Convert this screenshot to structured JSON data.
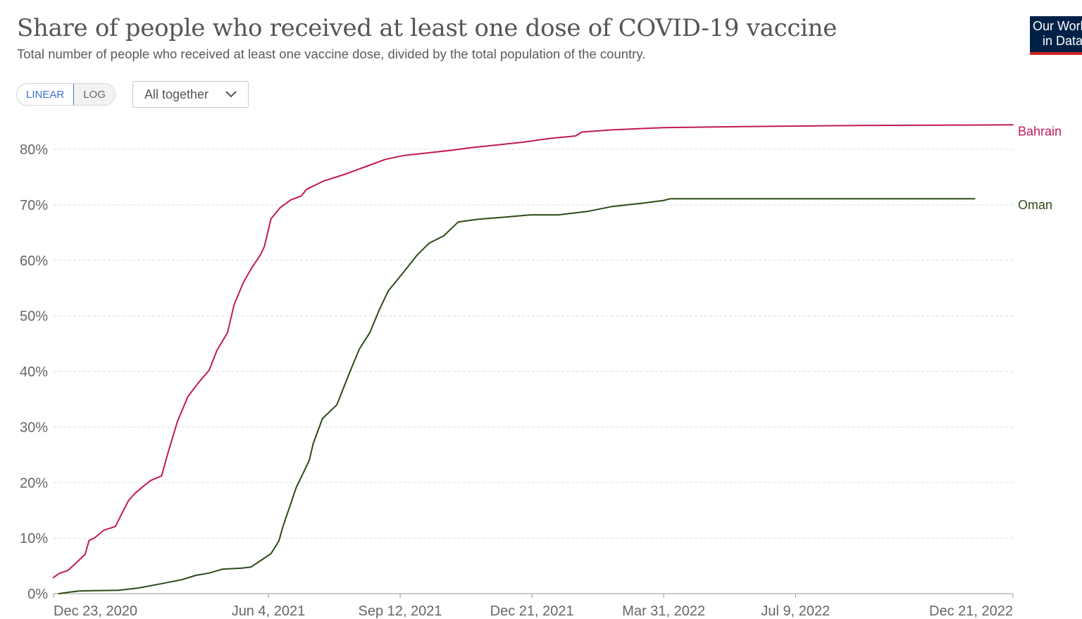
{
  "header": {
    "title": "Share of people who received at least one dose of COVID-19 vaccine",
    "subtitle": "Total number of people who received at least one vaccine dose, divided by the total population of the country."
  },
  "logo": {
    "line1": "Our World",
    "line2": "in Data"
  },
  "controls": {
    "scale_options": [
      "LINEAR",
      "LOG"
    ],
    "active_scale": "LINEAR",
    "dropdown_value": "All together",
    "dropdown_icon": "chevron-down-icon"
  },
  "chart_data": {
    "type": "line",
    "title": "Share of people who received at least one dose of COVID-19 vaccine",
    "subtitle": "Total number of people who received at least one vaccine dose, divided by the total population of the country.",
    "xlabel": "",
    "ylabel": "",
    "x_start": "2020-12-23",
    "x_end": "2022-12-21",
    "x_ticks": [
      {
        "date": "2020-12-23",
        "label": "Dec 23, 2020"
      },
      {
        "date": "2021-06-04",
        "label": "Jun 4, 2021"
      },
      {
        "date": "2021-09-12",
        "label": "Sep 12, 2021"
      },
      {
        "date": "2021-12-21",
        "label": "Dec 21, 2021"
      },
      {
        "date": "2022-03-31",
        "label": "Mar 31, 2022"
      },
      {
        "date": "2022-07-09",
        "label": "Jul 9, 2022"
      },
      {
        "date": "2022-12-21",
        "label": "Dec 21, 2022"
      }
    ],
    "ylim": [
      0,
      80
    ],
    "y_ticks": [
      {
        "value": 0,
        "label": "0%"
      },
      {
        "value": 10,
        "label": "10%"
      },
      {
        "value": 20,
        "label": "20%"
      },
      {
        "value": 30,
        "label": "30%"
      },
      {
        "value": 40,
        "label": "40%"
      },
      {
        "value": 50,
        "label": "50%"
      },
      {
        "value": 60,
        "label": "60%"
      },
      {
        "value": 70,
        "label": "70%"
      },
      {
        "value": 80,
        "label": "80%"
      }
    ],
    "grid": true,
    "series": [
      {
        "name": "Bahrain",
        "color": "#c2185b",
        "points": [
          [
            "2020-12-23",
            2.9
          ],
          [
            "2020-12-27",
            3.6
          ],
          [
            "2021-01-03",
            4.2
          ],
          [
            "2021-01-09",
            5.5
          ],
          [
            "2021-01-16",
            7.1
          ],
          [
            "2021-01-19",
            9.6
          ],
          [
            "2021-01-23",
            10.0
          ],
          [
            "2021-01-30",
            11.4
          ],
          [
            "2021-02-08",
            12.1
          ],
          [
            "2021-02-13",
            14.5
          ],
          [
            "2021-02-18",
            16.8
          ],
          [
            "2021-02-23",
            18.1
          ],
          [
            "2021-03-02",
            19.5
          ],
          [
            "2021-03-07",
            20.4
          ],
          [
            "2021-03-15",
            21.2
          ],
          [
            "2021-03-20",
            25.5
          ],
          [
            "2021-03-27",
            31.0
          ],
          [
            "2021-04-04",
            35.5
          ],
          [
            "2021-04-12",
            38.0
          ],
          [
            "2021-04-20",
            40.2
          ],
          [
            "2021-04-26",
            43.8
          ],
          [
            "2021-05-04",
            47.0
          ],
          [
            "2021-05-09",
            52.0
          ],
          [
            "2021-05-16",
            56.0
          ],
          [
            "2021-05-22",
            58.5
          ],
          [
            "2021-05-29",
            61.0
          ],
          [
            "2021-06-01",
            62.5
          ],
          [
            "2021-06-06",
            67.5
          ],
          [
            "2021-06-13",
            69.5
          ],
          [
            "2021-06-21",
            70.9
          ],
          [
            "2021-06-29",
            71.6
          ],
          [
            "2021-07-03",
            72.8
          ],
          [
            "2021-07-16",
            74.3
          ],
          [
            "2021-08-01",
            75.5
          ],
          [
            "2021-08-17",
            76.9
          ],
          [
            "2021-09-01",
            78.2
          ],
          [
            "2021-09-15",
            78.9
          ],
          [
            "2021-10-01",
            79.3
          ],
          [
            "2021-10-20",
            79.8
          ],
          [
            "2021-11-05",
            80.3
          ],
          [
            "2021-11-25",
            80.8
          ],
          [
            "2021-12-15",
            81.3
          ],
          [
            "2022-01-05",
            82.0
          ],
          [
            "2022-01-23",
            82.4
          ],
          [
            "2022-01-28",
            83.1
          ],
          [
            "2022-02-20",
            83.5
          ],
          [
            "2022-03-31",
            83.9
          ],
          [
            "2022-06-01",
            84.1
          ],
          [
            "2022-09-01",
            84.3
          ],
          [
            "2022-12-21",
            84.4
          ]
        ]
      },
      {
        "name": "Oman",
        "color": "#2c4a18",
        "points": [
          [
            "2020-12-27",
            0.0
          ],
          [
            "2021-01-05",
            0.3
          ],
          [
            "2021-01-12",
            0.5
          ],
          [
            "2021-02-10",
            0.6
          ],
          [
            "2021-02-25",
            1.0
          ],
          [
            "2021-03-15",
            1.8
          ],
          [
            "2021-03-30",
            2.5
          ],
          [
            "2021-04-10",
            3.3
          ],
          [
            "2021-04-20",
            3.7
          ],
          [
            "2021-04-30",
            4.4
          ],
          [
            "2021-05-15",
            4.6
          ],
          [
            "2021-05-22",
            4.8
          ],
          [
            "2021-06-06",
            7.2
          ],
          [
            "2021-06-12",
            9.5
          ],
          [
            "2021-06-15",
            12.0
          ],
          [
            "2021-06-25",
            19.0
          ],
          [
            "2021-07-05",
            24.0
          ],
          [
            "2021-07-08",
            27.0
          ],
          [
            "2021-07-15",
            31.5
          ],
          [
            "2021-07-26",
            34.0
          ],
          [
            "2021-08-05",
            40.0
          ],
          [
            "2021-08-12",
            44.0
          ],
          [
            "2021-08-20",
            47.0
          ],
          [
            "2021-08-27",
            51.0
          ],
          [
            "2021-09-03",
            54.5
          ],
          [
            "2021-09-15",
            58.0
          ],
          [
            "2021-09-25",
            61.0
          ],
          [
            "2021-10-04",
            63.1
          ],
          [
            "2021-10-15",
            64.4
          ],
          [
            "2021-10-26",
            66.9
          ],
          [
            "2021-11-10",
            67.4
          ],
          [
            "2021-12-01",
            67.8
          ],
          [
            "2021-12-20",
            68.2
          ],
          [
            "2022-01-10",
            68.2
          ],
          [
            "2022-02-01",
            68.8
          ],
          [
            "2022-02-20",
            69.7
          ],
          [
            "2022-03-15",
            70.3
          ],
          [
            "2022-03-31",
            70.8
          ],
          [
            "2022-04-05",
            71.1
          ],
          [
            "2022-07-01",
            71.1
          ],
          [
            "2022-11-22",
            71.1
          ]
        ]
      }
    ]
  }
}
